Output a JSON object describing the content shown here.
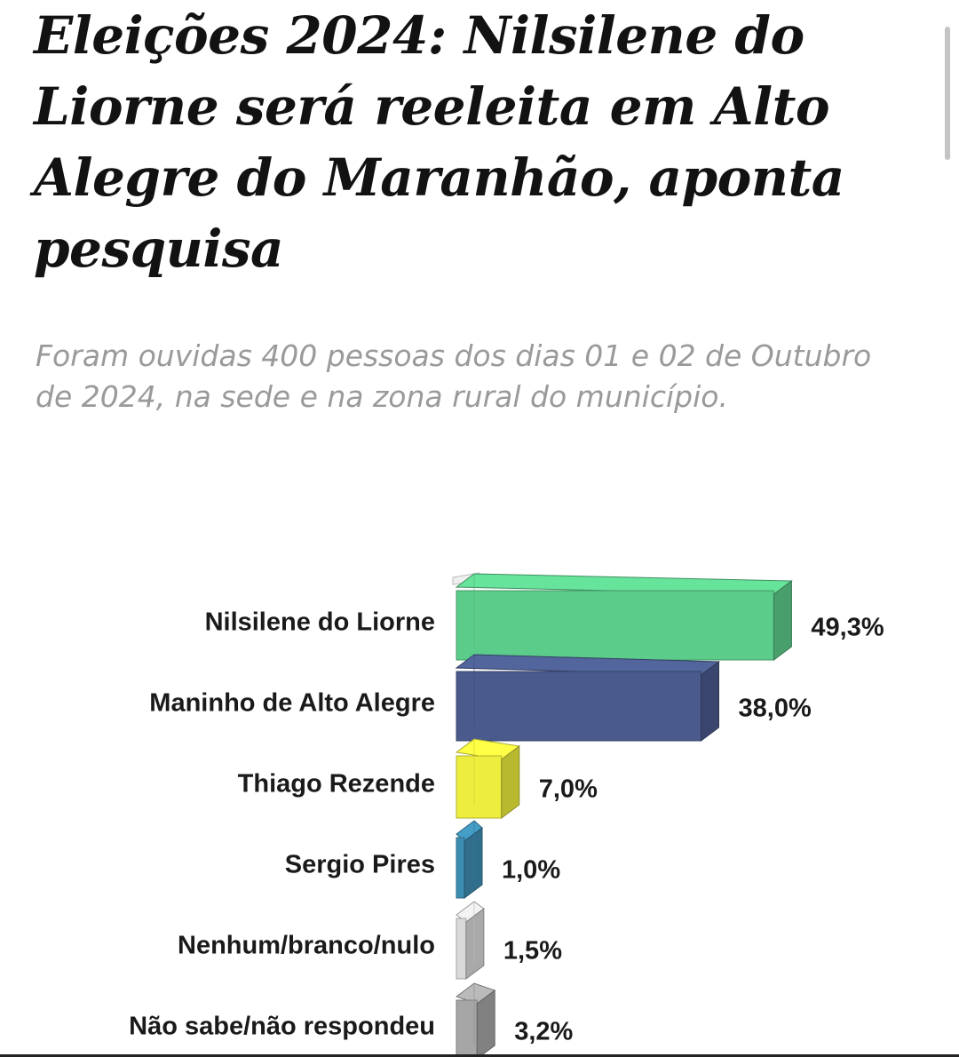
{
  "article": {
    "headline": "Eleições 2024: Nilsilene do Liorne será reeleita em Alto Alegre do Maranhão, aponta pesquisa",
    "subhead": "Foram ouvidas 400 pessoas dos dias 01 e 02 de Outubro de 2024, na sede e na zona rural do município."
  },
  "chart_data": {
    "type": "bar",
    "orientation": "horizontal",
    "style": "3d",
    "categories": [
      "Nilsilene do Liorne",
      "Maninho de Alto Alegre",
      "Thiago Rezende",
      "Sergio Pires",
      "Nenhum/branco/nulo",
      "Não sabe/não respondeu"
    ],
    "values": [
      49.3,
      38.0,
      7.0,
      1.0,
      1.5,
      3.2
    ],
    "value_labels": [
      "49,3%",
      "38,0%",
      "7,0%",
      "1,0%",
      "1,5%",
      "3,2%"
    ],
    "colors": [
      "#5ccc8a",
      "#4a5a8c",
      "#eded3e",
      "#3d8db3",
      "#d9d9d9",
      "#a6a6a6"
    ],
    "unit": "%",
    "title": "",
    "xlabel": "",
    "ylabel": "",
    "grid": false,
    "legend": false
  }
}
